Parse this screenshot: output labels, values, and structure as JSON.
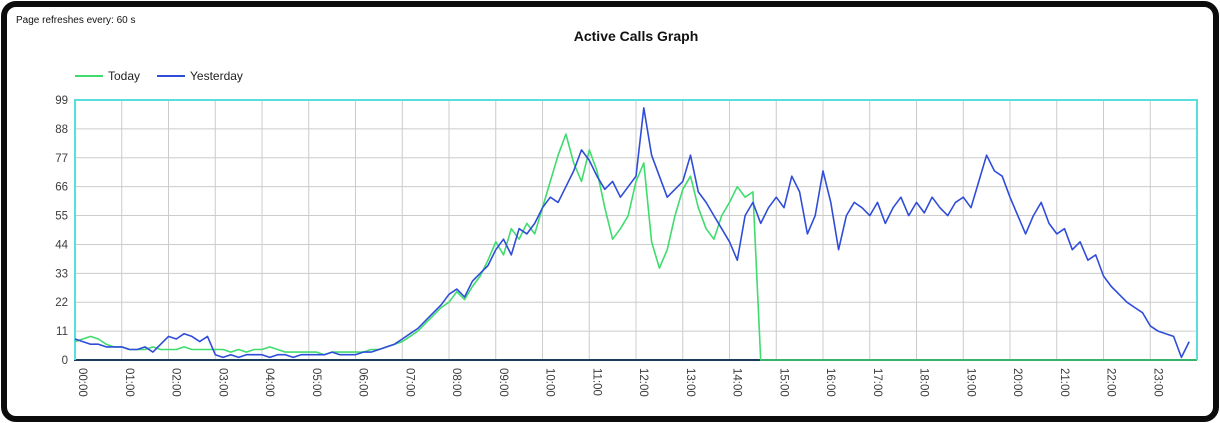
{
  "header": {
    "refresh_note": "Page refreshes every: 60 s"
  },
  "chart_data": {
    "type": "line",
    "title": "Active Calls Graph",
    "xlabel": "",
    "ylabel": "",
    "ylim": [
      0,
      99
    ],
    "y_ticks": [
      0,
      11,
      22,
      33,
      44,
      55,
      66,
      77,
      88,
      99
    ],
    "x_axis_range_hours": [
      0,
      24
    ],
    "x_minutes_per_point": 10,
    "x_tick_labels": [
      "00:00",
      "01:00",
      "02:00",
      "03:00",
      "04:00",
      "05:00",
      "06:00",
      "07:00",
      "08:00",
      "09:00",
      "10:00",
      "11:00",
      "12:00",
      "13:00",
      "14:00",
      "15:00",
      "16:00",
      "17:00",
      "18:00",
      "19:00",
      "20:00",
      "21:00",
      "22:00",
      "23:00"
    ],
    "grid": true,
    "legend_position": "top-left",
    "colors": {
      "today_green": "#3fdc6e",
      "yesterday_blue": "#2f4dd8",
      "plot_border_cyan": "#58dfdd",
      "axis_dark": "#1c3c5e",
      "grid_gray": "#cccccc",
      "tick_text": "#3c3c3c",
      "frame_black": "#0c0c0c"
    },
    "series": [
      {
        "name": "Today",
        "color": "#3fdc6e",
        "values": [
          7,
          8,
          9,
          8,
          6,
          5,
          5,
          4,
          4,
          4,
          5,
          4,
          4,
          4,
          5,
          4,
          4,
          4,
          4,
          4,
          3,
          4,
          3,
          4,
          4,
          5,
          4,
          3,
          3,
          3,
          3,
          3,
          2,
          3,
          3,
          3,
          3,
          3,
          4,
          4,
          5,
          6,
          7,
          9,
          11,
          14,
          17,
          20,
          22,
          26,
          23,
          28,
          32,
          38,
          45,
          40,
          50,
          46,
          52,
          48,
          58,
          68,
          78,
          86,
          75,
          68,
          80,
          72,
          58,
          46,
          50,
          55,
          68,
          75,
          45,
          35,
          42,
          55,
          65,
          70,
          58,
          50,
          46,
          55,
          60,
          66,
          62,
          64,
          0,
          0,
          0,
          0,
          0,
          0,
          0,
          0,
          0,
          0,
          0,
          0,
          0,
          0,
          0,
          0,
          0,
          0,
          0,
          0,
          0,
          0,
          0,
          0,
          0,
          0,
          0,
          0,
          0,
          0,
          0,
          0,
          0,
          0,
          0,
          0,
          0,
          0,
          0,
          0,
          0,
          0,
          0,
          0,
          0,
          0,
          0,
          0,
          0,
          0,
          0,
          0,
          0,
          0,
          0,
          0,
          0
        ]
      },
      {
        "name": "Yesterday",
        "color": "#2f4dd8",
        "values": [
          8,
          7,
          6,
          6,
          5,
          5,
          5,
          4,
          4,
          5,
          3,
          6,
          9,
          8,
          10,
          9,
          7,
          9,
          2,
          1,
          2,
          1,
          2,
          2,
          2,
          1,
          2,
          2,
          1,
          2,
          2,
          2,
          2,
          3,
          2,
          2,
          2,
          3,
          3,
          4,
          5,
          6,
          8,
          10,
          12,
          15,
          18,
          21,
          25,
          27,
          24,
          30,
          33,
          36,
          42,
          46,
          40,
          50,
          48,
          52,
          58,
          62,
          60,
          66,
          72,
          80,
          76,
          70,
          65,
          68,
          62,
          66,
          70,
          96,
          78,
          70,
          62,
          65,
          68,
          78,
          64,
          60,
          55,
          50,
          45,
          38,
          55,
          60,
          52,
          58,
          62,
          58,
          70,
          64,
          48,
          55,
          72,
          60,
          42,
          55,
          60,
          58,
          55,
          60,
          52,
          58,
          62,
          55,
          60,
          56,
          62,
          58,
          55,
          60,
          62,
          58,
          68,
          78,
          72,
          70,
          62,
          55,
          48,
          55,
          60,
          52,
          48,
          50,
          42,
          45,
          38,
          40,
          32,
          28,
          25,
          22,
          20,
          18,
          13,
          11,
          10,
          9,
          1,
          7
        ]
      }
    ]
  }
}
